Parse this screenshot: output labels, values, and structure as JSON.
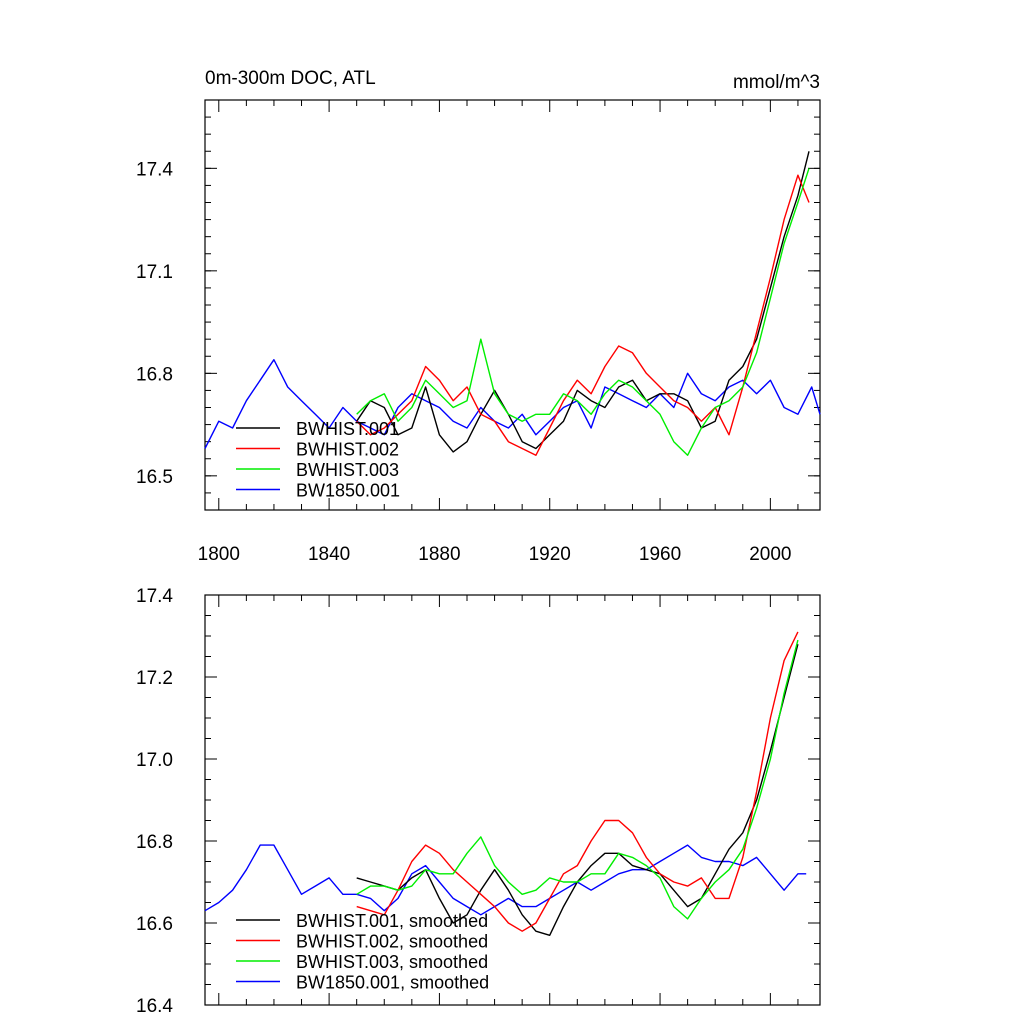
{
  "figure": {
    "colors": {
      "BWHIST.001": "#000000",
      "BWHIST.002": "#ff0000",
      "BWHIST.003": "#00ee00",
      "BW1850.001": "#0000ff"
    }
  },
  "chart_data": [
    {
      "type": "line",
      "title": "0m-300m DOC, ATL",
      "units": "mmol/m^3",
      "xlabel": "",
      "ylabel": "",
      "xlim": [
        1795,
        2018
      ],
      "ylim": [
        16.4,
        17.6
      ],
      "xticks": [
        1800,
        1840,
        1880,
        1920,
        1960,
        2000
      ],
      "yticks": [
        16.5,
        16.8,
        17.1,
        17.4
      ],
      "ytick_labels": [
        "16.5",
        "16.8",
        "17.1",
        "17.4"
      ],
      "legend_position": "lower-left",
      "series": [
        {
          "name": "BWHIST.001",
          "x": [
            1850,
            1855,
            1860,
            1865,
            1870,
            1875,
            1880,
            1885,
            1890,
            1895,
            1900,
            1905,
            1910,
            1915,
            1920,
            1925,
            1930,
            1935,
            1940,
            1945,
            1950,
            1955,
            1960,
            1965,
            1970,
            1975,
            1980,
            1985,
            1990,
            1995,
            2000,
            2005,
            2010,
            2014
          ],
          "y": [
            16.66,
            16.72,
            16.7,
            16.62,
            16.64,
            16.76,
            16.62,
            16.57,
            16.6,
            16.68,
            16.75,
            16.68,
            16.6,
            16.58,
            16.62,
            16.66,
            16.75,
            16.72,
            16.7,
            16.76,
            16.78,
            16.72,
            16.74,
            16.74,
            16.72,
            16.64,
            16.66,
            16.78,
            16.82,
            16.9,
            17.05,
            17.2,
            17.32,
            17.45
          ]
        },
        {
          "name": "BWHIST.002",
          "x": [
            1850,
            1855,
            1860,
            1865,
            1870,
            1875,
            1880,
            1885,
            1890,
            1895,
            1900,
            1905,
            1910,
            1915,
            1920,
            1925,
            1930,
            1935,
            1940,
            1945,
            1950,
            1955,
            1960,
            1965,
            1970,
            1975,
            1980,
            1985,
            1990,
            1995,
            2000,
            2005,
            2010,
            2014
          ],
          "y": [
            16.66,
            16.62,
            16.64,
            16.68,
            16.72,
            16.82,
            16.78,
            16.72,
            16.76,
            16.68,
            16.66,
            16.6,
            16.58,
            16.56,
            16.64,
            16.72,
            16.78,
            16.74,
            16.82,
            16.88,
            16.86,
            16.8,
            16.76,
            16.72,
            16.7,
            16.66,
            16.7,
            16.62,
            16.76,
            16.92,
            17.08,
            17.25,
            17.38,
            17.3
          ]
        },
        {
          "name": "BWHIST.003",
          "x": [
            1850,
            1855,
            1860,
            1865,
            1870,
            1875,
            1880,
            1885,
            1890,
            1895,
            1900,
            1905,
            1910,
            1915,
            1920,
            1925,
            1930,
            1935,
            1940,
            1945,
            1950,
            1955,
            1960,
            1965,
            1970,
            1975,
            1980,
            1985,
            1990,
            1995,
            2000,
            2005,
            2010,
            2014
          ],
          "y": [
            16.68,
            16.72,
            16.74,
            16.66,
            16.7,
            16.78,
            16.74,
            16.7,
            16.72,
            16.9,
            16.74,
            16.68,
            16.66,
            16.68,
            16.68,
            16.74,
            16.72,
            16.68,
            16.74,
            16.78,
            16.76,
            16.72,
            16.68,
            16.6,
            16.56,
            16.64,
            16.7,
            16.72,
            16.76,
            16.86,
            17.02,
            17.18,
            17.3,
            17.4
          ]
        },
        {
          "name": "BW1850.001",
          "x": [
            1795,
            1800,
            1805,
            1810,
            1815,
            1820,
            1825,
            1830,
            1835,
            1840,
            1845,
            1850,
            1855,
            1860,
            1865,
            1870,
            1875,
            1880,
            1885,
            1890,
            1895,
            1900,
            1905,
            1910,
            1915,
            1920,
            1925,
            1930,
            1935,
            1940,
            1945,
            1950,
            1955,
            1960,
            1965,
            1970,
            1975,
            1980,
            1985,
            1990,
            1995,
            2000,
            2005,
            2010,
            2015,
            2018
          ],
          "y": [
            16.58,
            16.66,
            16.64,
            16.72,
            16.78,
            16.84,
            16.76,
            16.72,
            16.68,
            16.64,
            16.7,
            16.66,
            16.64,
            16.62,
            16.7,
            16.74,
            16.72,
            16.7,
            16.66,
            16.64,
            16.7,
            16.66,
            16.64,
            16.68,
            16.62,
            16.66,
            16.7,
            16.72,
            16.64,
            16.76,
            16.74,
            16.72,
            16.7,
            16.74,
            16.7,
            16.8,
            16.74,
            16.72,
            16.76,
            16.78,
            16.74,
            16.78,
            16.7,
            16.68,
            16.76,
            16.68
          ]
        }
      ]
    },
    {
      "type": "line",
      "title": "",
      "xlabel": "",
      "ylabel": "",
      "xlim": [
        1795,
        2018
      ],
      "ylim": [
        16.4,
        17.4
      ],
      "xticks": [
        1800,
        1840,
        1880,
        1920,
        1960,
        2000
      ],
      "yticks": [
        16.4,
        16.6,
        16.8,
        17.0,
        17.2,
        17.4
      ],
      "ytick_labels": [
        "16.4",
        "16.6",
        "16.8",
        "17.0",
        "17.2",
        "17.4"
      ],
      "legend_position": "lower-left",
      "series": [
        {
          "name": "BWHIST.001, smoothed",
          "color_key": "BWHIST.001",
          "x": [
            1850,
            1855,
            1860,
            1865,
            1870,
            1875,
            1880,
            1885,
            1890,
            1895,
            1900,
            1905,
            1910,
            1915,
            1920,
            1925,
            1930,
            1935,
            1940,
            1945,
            1950,
            1955,
            1960,
            1965,
            1970,
            1975,
            1980,
            1985,
            1990,
            1995,
            2000,
            2005,
            2010
          ],
          "y": [
            16.71,
            16.7,
            16.69,
            16.68,
            16.71,
            16.73,
            16.66,
            16.6,
            16.62,
            16.68,
            16.73,
            16.68,
            16.62,
            16.58,
            16.57,
            16.64,
            16.7,
            16.74,
            16.77,
            16.77,
            16.74,
            16.73,
            16.72,
            16.68,
            16.64,
            16.66,
            16.72,
            16.78,
            16.82,
            16.9,
            17.02,
            17.15,
            17.28
          ]
        },
        {
          "name": "BWHIST.002, smoothed",
          "color_key": "BWHIST.002",
          "x": [
            1850,
            1855,
            1860,
            1865,
            1870,
            1875,
            1880,
            1885,
            1890,
            1895,
            1900,
            1905,
            1910,
            1915,
            1920,
            1925,
            1930,
            1935,
            1940,
            1945,
            1950,
            1955,
            1960,
            1965,
            1970,
            1975,
            1980,
            1985,
            1990,
            1995,
            2000,
            2005,
            2010
          ],
          "y": [
            16.64,
            16.63,
            16.62,
            16.68,
            16.75,
            16.79,
            16.77,
            16.73,
            16.7,
            16.67,
            16.64,
            16.6,
            16.58,
            16.6,
            16.66,
            16.72,
            16.74,
            16.8,
            16.85,
            16.85,
            16.82,
            16.76,
            16.72,
            16.7,
            16.69,
            16.71,
            16.66,
            16.66,
            16.76,
            16.92,
            17.1,
            17.24,
            17.31
          ]
        },
        {
          "name": "BWHIST.003, smoothed",
          "color_key": "BWHIST.003",
          "x": [
            1850,
            1855,
            1860,
            1865,
            1870,
            1875,
            1880,
            1885,
            1890,
            1895,
            1900,
            1905,
            1910,
            1915,
            1920,
            1925,
            1930,
            1935,
            1940,
            1945,
            1950,
            1955,
            1960,
            1965,
            1970,
            1975,
            1980,
            1985,
            1990,
            1995,
            2000,
            2005,
            2010
          ],
          "y": [
            16.67,
            16.69,
            16.69,
            16.68,
            16.69,
            16.73,
            16.72,
            16.72,
            16.77,
            16.81,
            16.74,
            16.7,
            16.67,
            16.68,
            16.71,
            16.7,
            16.7,
            16.72,
            16.72,
            16.77,
            16.76,
            16.74,
            16.71,
            16.64,
            16.61,
            16.66,
            16.7,
            16.73,
            16.78,
            16.88,
            17.0,
            17.16,
            17.29
          ]
        },
        {
          "name": "BW1850.001, smoothed",
          "color_key": "BW1850.001",
          "x": [
            1795,
            1800,
            1805,
            1810,
            1815,
            1820,
            1825,
            1830,
            1835,
            1840,
            1845,
            1850,
            1855,
            1860,
            1865,
            1870,
            1875,
            1880,
            1885,
            1890,
            1895,
            1900,
            1905,
            1910,
            1915,
            1920,
            1925,
            1930,
            1935,
            1940,
            1945,
            1950,
            1955,
            1960,
            1965,
            1970,
            1975,
            1980,
            1985,
            1990,
            1995,
            2000,
            2005,
            2010,
            2013
          ],
          "y": [
            16.63,
            16.65,
            16.68,
            16.73,
            16.79,
            16.79,
            16.73,
            16.67,
            16.69,
            16.71,
            16.67,
            16.67,
            16.66,
            16.63,
            16.66,
            16.72,
            16.74,
            16.7,
            16.66,
            16.64,
            16.62,
            16.64,
            16.66,
            16.64,
            16.64,
            16.66,
            16.68,
            16.7,
            16.68,
            16.7,
            16.72,
            16.73,
            16.73,
            16.75,
            16.77,
            16.79,
            16.76,
            16.75,
            16.75,
            16.74,
            16.76,
            16.72,
            16.68,
            16.72,
            16.72
          ]
        }
      ]
    }
  ]
}
